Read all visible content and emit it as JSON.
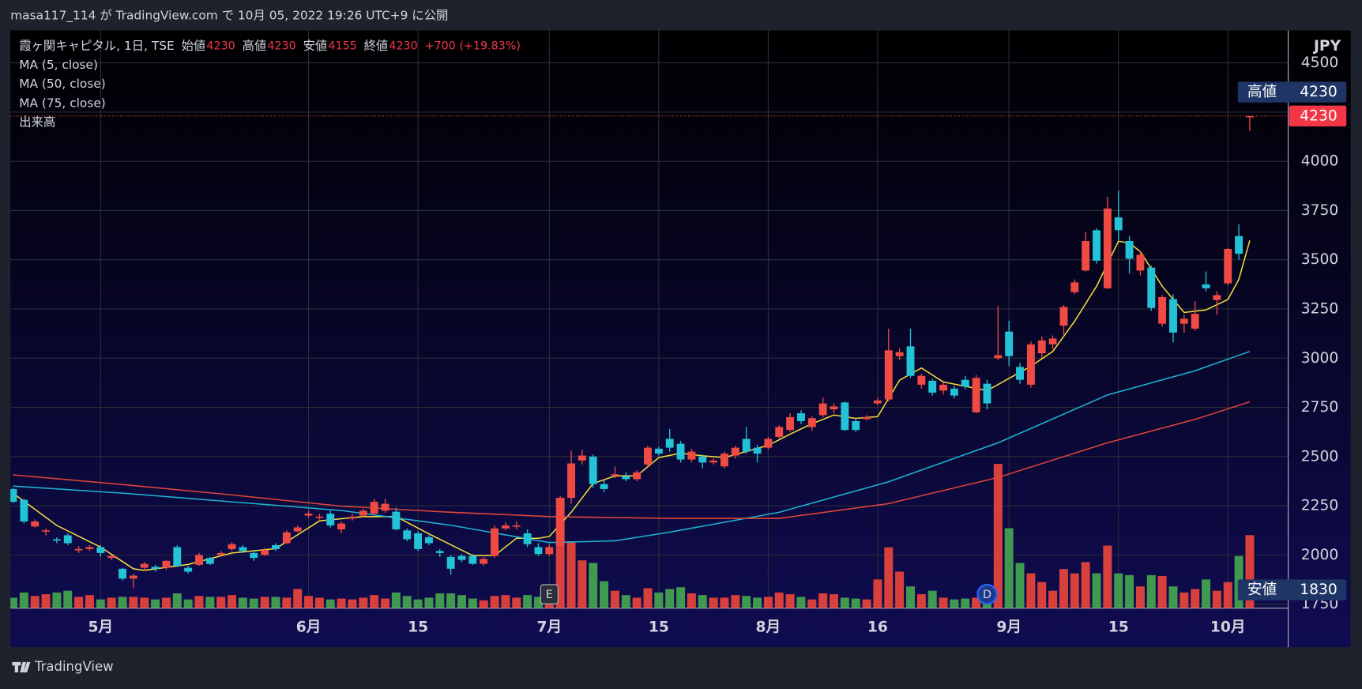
{
  "header": {
    "publisher": "masa117_114 が TradingView.com で 10月 05, 2022 19:26 UTC+9 に公開"
  },
  "footer": {
    "brand": "TradingView"
  },
  "chart_data": {
    "type": "candlestick",
    "symbol": "霞ヶ関キャピタル, 1日, TSE",
    "ohlc_legend": [
      {
        "label": "始値",
        "value": 4230
      },
      {
        "label": "高値",
        "value": 4230
      },
      {
        "label": "安値",
        "value": 4155
      },
      {
        "label": "終値",
        "value": 4230
      }
    ],
    "change": "+700 (+19.83%)",
    "volume_name": "出来高",
    "currency": "JPY",
    "up_color": "#ef4b43",
    "down_color": "#22c3d6",
    "volume_up_color": "#d8403c",
    "volume_down_color": "#3f9a4f",
    "grid": true,
    "ylim": [
      1730,
      4665
    ],
    "yticks": [
      1750,
      2000,
      2250,
      2500,
      2750,
      3000,
      3250,
      3500,
      3750,
      4000,
      4250,
      4500
    ],
    "categories": [
      null,
      null,
      null,
      null,
      null,
      null,
      null,
      null,
      "5月",
      null,
      null,
      null,
      null,
      null,
      null,
      null,
      null,
      null,
      null,
      null,
      null,
      null,
      null,
      null,
      null,
      null,
      null,
      "6月",
      null,
      null,
      null,
      null,
      null,
      null,
      null,
      null,
      null,
      "15",
      null,
      null,
      null,
      null,
      null,
      null,
      null,
      null,
      null,
      null,
      null,
      "7月",
      null,
      null,
      null,
      null,
      null,
      null,
      null,
      null,
      null,
      "15",
      null,
      null,
      null,
      null,
      null,
      null,
      null,
      null,
      null,
      "8月",
      null,
      null,
      null,
      null,
      null,
      null,
      null,
      null,
      null,
      "16",
      null,
      null,
      null,
      null,
      null,
      null,
      null,
      null,
      null,
      null,
      null,
      "9月",
      null,
      null,
      null,
      null,
      null,
      null,
      null,
      null,
      null,
      "15",
      null,
      null,
      null,
      null,
      null,
      null,
      null,
      null,
      null,
      "10月",
      null,
      null
    ],
    "open": [
      2335,
      2280,
      2145,
      2120,
      2080,
      2100,
      2025,
      2030,
      2040,
      1985,
      1930,
      1880,
      1935,
      1940,
      1935,
      2040,
      1935,
      1950,
      1985,
      2000,
      2030,
      2040,
      2010,
      2000,
      2050,
      2060,
      2120,
      2200,
      2190,
      2210,
      2130,
      2185,
      2200,
      2210,
      2225,
      2220,
      2125,
      2110,
      2090,
      2020,
      1990,
      1995,
      1995,
      1955,
      1995,
      2135,
      2145,
      2110,
      2040,
      2005,
      2045,
      2290,
      2480,
      2500,
      2360,
      2405,
      2400,
      2385,
      2460,
      2540,
      2590,
      2565,
      2485,
      2500,
      2470,
      2450,
      2505,
      2590,
      2545,
      2545,
      2600,
      2635,
      2720,
      2650,
      2710,
      2740,
      2775,
      2680,
      2690,
      2770,
      2790,
      3010,
      3060,
      2865,
      2885,
      2835,
      2845,
      2890,
      2725,
      2870,
      3000,
      3135,
      2955,
      2865,
      3025,
      3070,
      3165,
      3335,
      3445,
      3650,
      3355,
      3715,
      3595,
      3445,
      3460,
      3175,
      3300,
      3175,
      3150,
      3375,
      3295,
      3380,
      3620,
      4230
    ],
    "high": [
      2340,
      2285,
      2180,
      2135,
      2090,
      2110,
      2045,
      2050,
      2050,
      2000,
      1935,
      1905,
      1965,
      1950,
      1975,
      2050,
      1945,
      2010,
      1990,
      2020,
      2065,
      2050,
      2020,
      2035,
      2060,
      2125,
      2150,
      2225,
      2210,
      2225,
      2170,
      2210,
      2235,
      2285,
      2285,
      2240,
      2135,
      2120,
      2100,
      2030,
      2000,
      2005,
      2005,
      1990,
      2150,
      2165,
      2170,
      2130,
      2060,
      2055,
      2300,
      2530,
      2535,
      2510,
      2380,
      2450,
      2420,
      2430,
      2555,
      2550,
      2640,
      2580,
      2540,
      2510,
      2490,
      2525,
      2555,
      2650,
      2560,
      2600,
      2660,
      2720,
      2735,
      2705,
      2800,
      2770,
      2780,
      2690,
      2710,
      2800,
      3150,
      3050,
      3150,
      2920,
      2895,
      2875,
      2860,
      2910,
      2915,
      2890,
      3265,
      3190,
      2975,
      3085,
      3110,
      3115,
      3270,
      3400,
      3640,
      3660,
      3820,
      3850,
      3620,
      3545,
      3470,
      3320,
      3325,
      3220,
      3290,
      3440,
      3340,
      3560,
      3680,
      4230
    ],
    "low": [
      2265,
      2160,
      2140,
      2100,
      2060,
      2050,
      2010,
      2020,
      1990,
      1975,
      1870,
      1830,
      1920,
      1915,
      1925,
      1940,
      1905,
      1945,
      1950,
      1995,
      2020,
      2010,
      1970,
      1995,
      2020,
      2055,
      2115,
      2190,
      2180,
      2140,
      2110,
      2175,
      2190,
      2205,
      2215,
      2125,
      2070,
      2020,
      2050,
      1990,
      1900,
      1965,
      1950,
      1945,
      1985,
      2125,
      2130,
      2040,
      1995,
      1995,
      2040,
      2260,
      2460,
      2340,
      2320,
      2390,
      2375,
      2375,
      2450,
      2505,
      2525,
      2470,
      2470,
      2440,
      2460,
      2440,
      2490,
      2515,
      2470,
      2535,
      2590,
      2625,
      2665,
      2630,
      2700,
      2720,
      2630,
      2625,
      2685,
      2760,
      2780,
      2990,
      2900,
      2845,
      2810,
      2815,
      2795,
      2840,
      2720,
      2740,
      2990,
      2960,
      2870,
      2850,
      3000,
      3045,
      3120,
      3325,
      3440,
      3480,
      3350,
      3600,
      3430,
      3420,
      3240,
      3160,
      3080,
      3130,
      3140,
      3340,
      3220,
      3370,
      3500,
      4155
    ],
    "close": [
      2270,
      2170,
      2170,
      2125,
      2075,
      2060,
      2030,
      2040,
      2010,
      1995,
      1880,
      1895,
      1955,
      1930,
      1970,
      1945,
      1915,
      2000,
      1955,
      2010,
      2055,
      2020,
      1985,
      2025,
      2030,
      2115,
      2140,
      2210,
      2195,
      2150,
      2160,
      2195,
      2225,
      2270,
      2260,
      2130,
      2080,
      2030,
      2060,
      2010,
      1930,
      1975,
      1955,
      1980,
      2135,
      2150,
      2150,
      2055,
      2005,
      2040,
      2290,
      2465,
      2505,
      2360,
      2335,
      2410,
      2385,
      2420,
      2545,
      2515,
      2545,
      2485,
      2525,
      2470,
      2480,
      2515,
      2545,
      2525,
      2515,
      2590,
      2650,
      2700,
      2680,
      2695,
      2770,
      2755,
      2635,
      2635,
      2700,
      2785,
      3040,
      3030,
      2910,
      2910,
      2825,
      2865,
      2810,
      2855,
      2900,
      2770,
      3015,
      3010,
      2890,
      3070,
      3090,
      3100,
      3260,
      3385,
      3595,
      3495,
      3760,
      3650,
      3505,
      3525,
      3255,
      3310,
      3130,
      3200,
      3225,
      3355,
      3320,
      3555,
      3530,
      4230
    ],
    "volume": [
      12,
      18,
      14,
      16,
      18,
      20,
      13,
      15,
      10,
      12,
      13,
      13,
      12,
      10,
      12,
      17,
      10,
      14,
      13,
      13,
      15,
      12,
      11,
      13,
      13,
      12,
      22,
      14,
      12,
      10,
      11,
      10,
      12,
      15,
      11,
      18,
      14,
      10,
      12,
      17,
      17,
      15,
      11,
      9,
      14,
      15,
      12,
      15,
      13,
      13,
      127,
      77,
      55,
      52,
      31,
      20,
      15,
      12,
      23,
      18,
      22,
      24,
      17,
      15,
      12,
      12,
      15,
      14,
      12,
      13,
      18,
      16,
      13,
      10,
      17,
      16,
      12,
      11,
      10,
      33,
      70,
      42,
      25,
      16,
      20,
      12,
      10,
      11,
      12,
      18,
      166,
      92,
      52,
      40,
      30,
      20,
      45,
      40,
      53,
      40,
      72,
      40,
      38,
      25,
      38,
      37,
      25,
      18,
      22,
      33,
      20,
      30,
      60,
      84
    ],
    "series": [
      {
        "name": "MA (5, close)",
        "color": "#f2dc3c",
        "x": [
          0,
          4,
          8,
          11,
          12,
          16,
          20,
          24,
          28,
          32,
          35,
          38,
          42,
          44,
          46,
          48,
          49,
          51,
          53,
          55,
          57,
          59,
          61,
          63,
          65,
          67,
          69,
          71,
          73,
          75,
          77,
          79,
          81,
          83,
          85,
          87,
          89,
          91,
          93,
          95,
          97,
          99,
          101,
          102,
          103,
          105,
          107,
          109,
          111,
          112,
          113
        ],
        "values": [
          2314,
          2150,
          2040,
          1930,
          1922,
          1952,
          2010,
          2032,
          2173,
          2195,
          2195,
          2107,
          1997,
          1997,
          2085,
          2085,
          2094,
          2217,
          2363,
          2402,
          2402,
          2495,
          2517,
          2504,
          2495,
          2526,
          2557,
          2614,
          2667,
          2711,
          2694,
          2703,
          2888,
          2950,
          2879,
          2857,
          2835,
          2897,
          2959,
          3034,
          3188,
          3365,
          3594,
          3585,
          3541,
          3365,
          3232,
          3245,
          3298,
          3400,
          3598
        ]
      },
      {
        "name": "MA (50, close)",
        "color": "#1fb3d1",
        "x": [
          0,
          10,
          20,
          30,
          40,
          49,
          55,
          60,
          70,
          80,
          90,
          100,
          108,
          113
        ],
        "values": [
          2350,
          2314,
          2270,
          2226,
          2151,
          2063,
          2072,
          2116,
          2217,
          2372,
          2570,
          2813,
          2936,
          3034
        ]
      },
      {
        "name": "MA (75, close)",
        "color": "#e0453a",
        "x": [
          0,
          10,
          20,
          30,
          40,
          49,
          60,
          70,
          80,
          90,
          100,
          108,
          113
        ],
        "values": [
          2407,
          2358,
          2305,
          2248,
          2217,
          2195,
          2186,
          2186,
          2261,
          2394,
          2570,
          2689,
          2778
        ]
      }
    ],
    "events": [
      {
        "label": "E",
        "category": 49
      },
      {
        "label": "D",
        "category": 89
      }
    ],
    "high_marker": {
      "label": "高値",
      "value": 4230
    },
    "last_price": 4230,
    "low_marker": {
      "label": "安値",
      "value": 1830
    }
  }
}
